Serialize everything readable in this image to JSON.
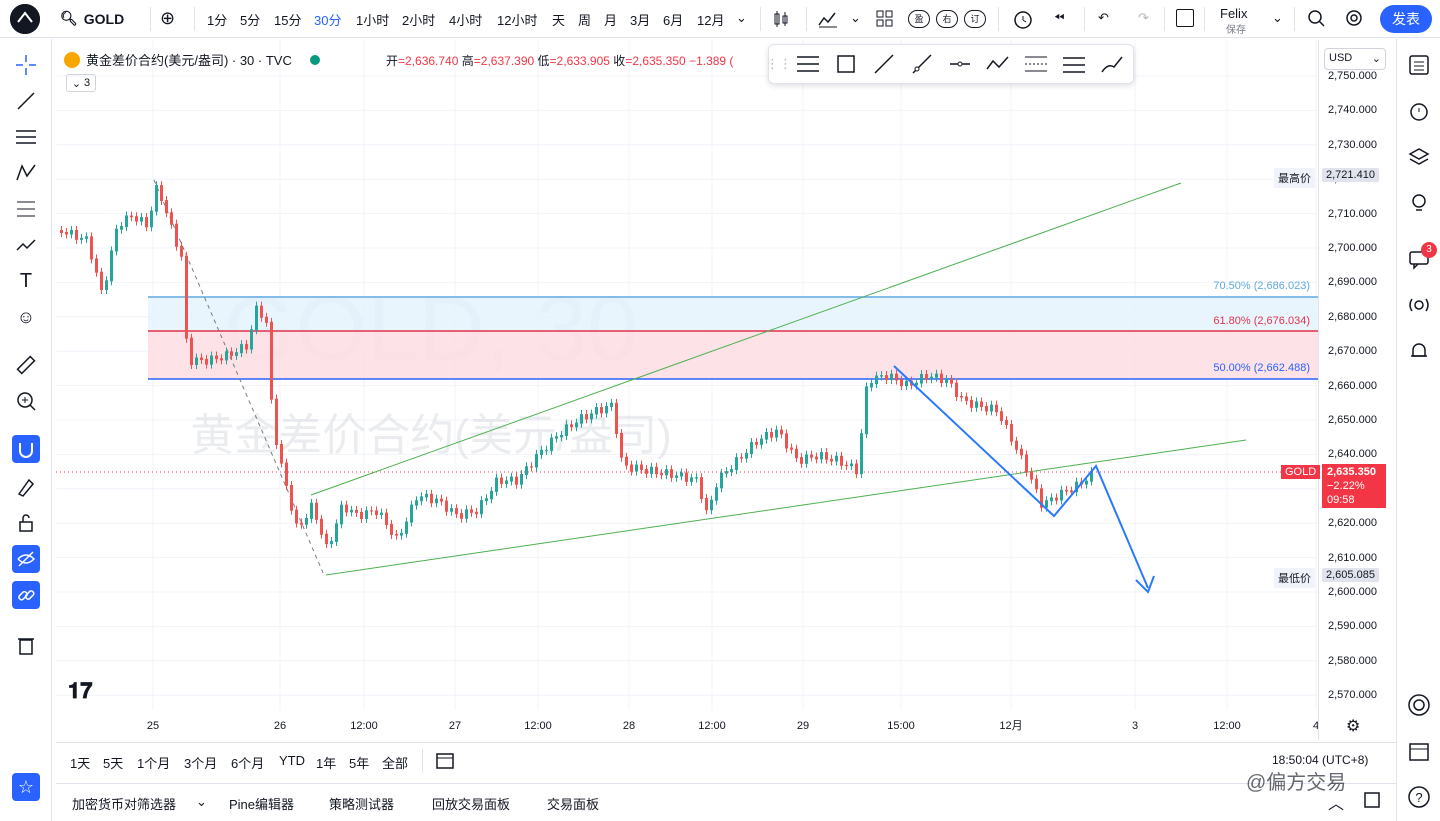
{
  "topbar": {
    "symbol": "GOLD",
    "intervals": [
      "1分",
      "5分",
      "15分",
      "30分",
      "1小时",
      "2小时",
      "4小时",
      "12小时",
      "天",
      "周",
      "月",
      "3月",
      "6月",
      "12月"
    ],
    "active_interval": "30分",
    "buttons": {
      "ying": "盈",
      "you": "右",
      "ding": "订"
    },
    "user": {
      "name": "Felix",
      "save": "保存"
    },
    "publish": "发表"
  },
  "legend": {
    "title": "黄金差价合约(美元/盎司) · 30 · TVC",
    "collapse_count": "3",
    "ohlc": {
      "open_label": "开",
      "open": "=2,636.740",
      "high_label": "高",
      "high": "=2,637.390",
      "low_label": "低",
      "low": "=2,633.905",
      "close_label": "收",
      "close": "=2,635.350",
      "change": "−1.389 ("
    }
  },
  "watermark": {
    "line1": "GOLD, 30",
    "line2": "黄金差价合约(美元/盎司)"
  },
  "price_scale": {
    "currency": "USD",
    "labels": [
      "2,750.000",
      "2,740.000",
      "2,730.000",
      "2,720.000",
      "2,710.000",
      "2,700.000",
      "2,690.000",
      "2,680.000",
      "2,670.000",
      "2,660.000",
      "2,650.000",
      "2,640.000",
      "2,630.000",
      "2,620.000",
      "2,610.000",
      "2,600.000",
      "2,590.000",
      "2,580.000",
      "2,570.000"
    ],
    "high_tag": {
      "label": "最高价",
      "value": "2,721.410"
    },
    "low_tag": {
      "label": "最低价",
      "value": "2,605.085"
    },
    "current": {
      "symbol": "GOLD",
      "price": "2,635.350",
      "change": "−2.22%",
      "countdown": "09:58"
    }
  },
  "fib": [
    {
      "label": "70.50% (2,686.023)",
      "color": "#5fa9e3"
    },
    {
      "label": "61.80% (2,676.034)",
      "color": "#e0334d"
    },
    {
      "label": "50.00% (2,662.488)",
      "color": "#2962ff"
    }
  ],
  "time_axis": [
    "25",
    "26",
    "12:00",
    "27",
    "12:00",
    "28",
    "12:00",
    "29",
    "15:00",
    "12月",
    "3",
    "12:00",
    "4"
  ],
  "ranges": [
    "1天",
    "5天",
    "1个月",
    "3个月",
    "6个月",
    "YTD",
    "1年",
    "5年",
    "全部"
  ],
  "clock": "18:50:04 (UTC+8)",
  "footer": {
    "tabs": [
      "加密货币对筛选器",
      "Pine编辑器",
      "策略测试器",
      "回放交易面板",
      "交易面板"
    ],
    "watermark": "@偏方交易"
  },
  "right_badge": "3",
  "colors": {
    "up": "#26a69a",
    "down": "#ef5350",
    "accent": "#2962ff",
    "trend": "#4caf50",
    "arrow": "#2979ff"
  }
}
